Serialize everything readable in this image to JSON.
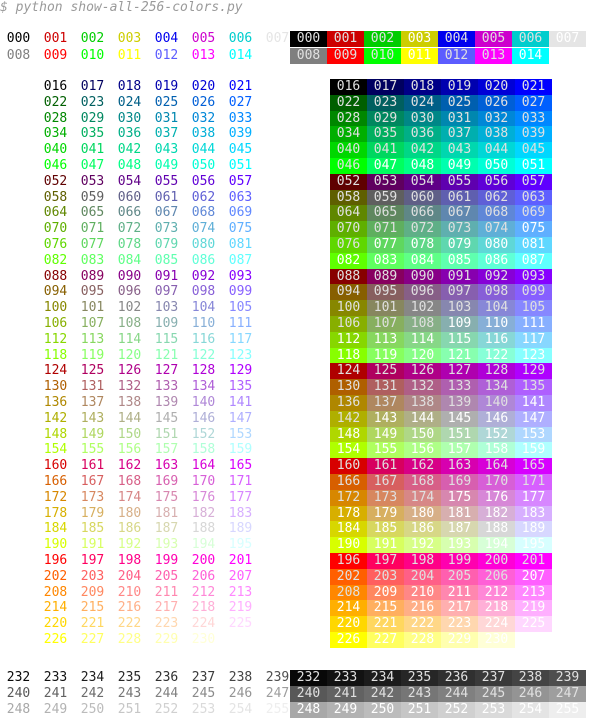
{
  "terminal": {
    "prompt": "$",
    "command": "python show-all-256-colors.py"
  },
  "palette": {
    "colors_hex": [
      "#000000",
      "#cd0000",
      "#00cd00",
      "#cdcd00",
      "#0000ee",
      "#cd00cd",
      "#00cdcd",
      "#e5e5e5",
      "#7f7f7f",
      "#ff0000",
      "#00ff00",
      "#ffff00",
      "#5c5cff",
      "#ff00ff",
      "#00ffff",
      "#ffffff"
    ],
    "cube_levels": [
      0,
      95,
      135,
      175,
      215,
      255
    ],
    "gray_start": 8,
    "gray_step": 10
  },
  "color_codes": [
    "000",
    "001",
    "002",
    "003",
    "004",
    "005",
    "006",
    "007",
    "008",
    "009",
    "010",
    "011",
    "012",
    "013",
    "014",
    "015",
    "016",
    "017",
    "018",
    "019",
    "020",
    "021",
    "022",
    "023",
    "024",
    "025",
    "026",
    "027",
    "028",
    "029",
    "030",
    "031",
    "032",
    "033",
    "034",
    "035",
    "036",
    "037",
    "038",
    "039",
    "040",
    "041",
    "042",
    "043",
    "044",
    "045",
    "046",
    "047",
    "048",
    "049",
    "050",
    "051",
    "052",
    "053",
    "054",
    "055",
    "056",
    "057",
    "058",
    "059",
    "060",
    "061",
    "062",
    "063",
    "064",
    "065",
    "066",
    "067",
    "068",
    "069",
    "070",
    "071",
    "072",
    "073",
    "074",
    "075",
    "076",
    "077",
    "078",
    "079",
    "080",
    "081",
    "082",
    "083",
    "084",
    "085",
    "086",
    "087",
    "088",
    "089",
    "090",
    "091",
    "092",
    "093",
    "094",
    "095",
    "096",
    "097",
    "098",
    "099",
    "100",
    "101",
    "102",
    "103",
    "104",
    "105",
    "106",
    "107",
    "108",
    "109",
    "110",
    "111",
    "112",
    "113",
    "114",
    "115",
    "116",
    "117",
    "118",
    "119",
    "120",
    "121",
    "122",
    "123",
    "124",
    "125",
    "126",
    "127",
    "128",
    "129",
    "130",
    "131",
    "132",
    "133",
    "134",
    "135",
    "136",
    "137",
    "138",
    "139",
    "140",
    "141",
    "142",
    "143",
    "144",
    "145",
    "146",
    "147",
    "148",
    "149",
    "150",
    "151",
    "152",
    "153",
    "154",
    "155",
    "156",
    "157",
    "158",
    "159",
    "160",
    "161",
    "162",
    "163",
    "164",
    "165",
    "166",
    "167",
    "168",
    "169",
    "170",
    "171",
    "172",
    "173",
    "174",
    "175",
    "176",
    "177",
    "178",
    "179",
    "180",
    "181",
    "182",
    "183",
    "184",
    "185",
    "186",
    "187",
    "188",
    "189",
    "190",
    "191",
    "192",
    "193",
    "194",
    "195",
    "196",
    "197",
    "198",
    "199",
    "200",
    "201",
    "202",
    "203",
    "204",
    "205",
    "206",
    "207",
    "208",
    "209",
    "210",
    "211",
    "212",
    "213",
    "214",
    "215",
    "216",
    "217",
    "218",
    "219",
    "220",
    "221",
    "222",
    "223",
    "224",
    "225",
    "226",
    "227",
    "228",
    "229",
    "230",
    "231",
    "232",
    "233",
    "234",
    "235",
    "236",
    "237",
    "238",
    "239",
    "240",
    "241",
    "242",
    "243",
    "244",
    "245",
    "246",
    "247",
    "248",
    "249",
    "250",
    "251",
    "252",
    "253",
    "254",
    "255"
  ]
}
